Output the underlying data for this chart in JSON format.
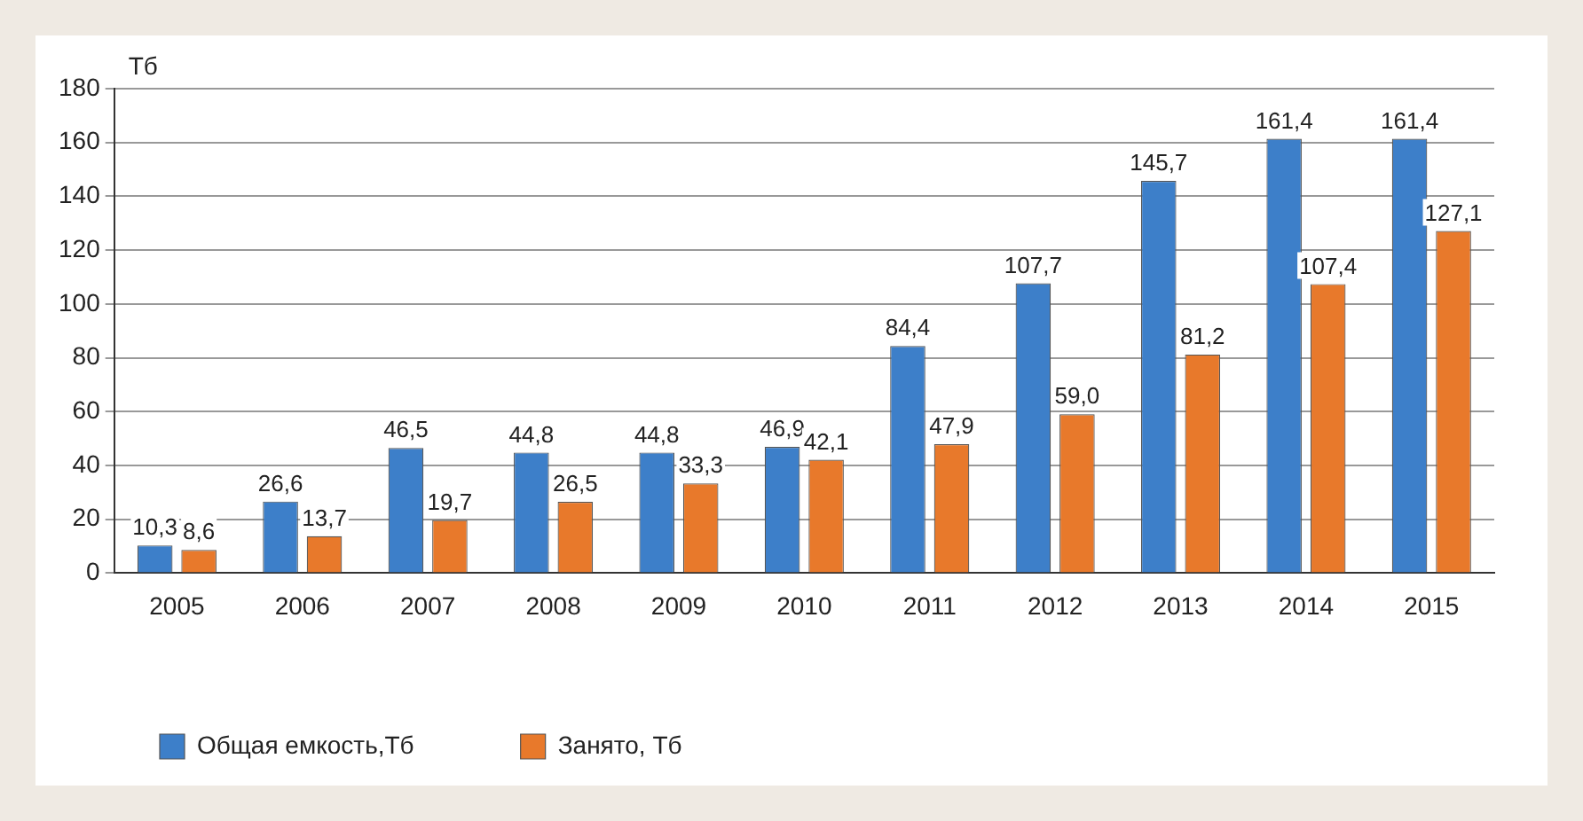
{
  "chart_data": {
    "type": "bar",
    "ylabel": "Тб",
    "categories": [
      "2005",
      "2006",
      "2007",
      "2008",
      "2009",
      "2010",
      "2011",
      "2012",
      "2013",
      "2014",
      "2015"
    ],
    "series": [
      {
        "name": "Общая емкость,Тб",
        "color": "#3d7fc9",
        "values": [
          10.3,
          26.6,
          46.5,
          44.8,
          44.8,
          46.9,
          84.4,
          107.7,
          145.7,
          161.4,
          161.4
        ],
        "value_labels": [
          "10,3",
          "26,6",
          "46,5",
          "44,8",
          "44,8",
          "46,9",
          "84,4",
          "107,7",
          "145,7",
          "161,4",
          "161,4"
        ]
      },
      {
        "name": "Занято, Тб",
        "color": "#e8792b",
        "values": [
          8.6,
          13.7,
          19.7,
          26.5,
          33.3,
          42.1,
          47.9,
          59.0,
          81.2,
          107.4,
          127.1
        ],
        "value_labels": [
          "8,6",
          "13,7",
          "19,7",
          "26,5",
          "33,3",
          "42,1",
          "47,9",
          "59,0",
          "81,2",
          "107,4",
          "127,1"
        ]
      }
    ],
    "ylim": [
      0,
      180
    ],
    "yticks": [
      0,
      20,
      40,
      60,
      80,
      100,
      120,
      140,
      160,
      180
    ],
    "grid": "y",
    "legend": "bottom left"
  }
}
